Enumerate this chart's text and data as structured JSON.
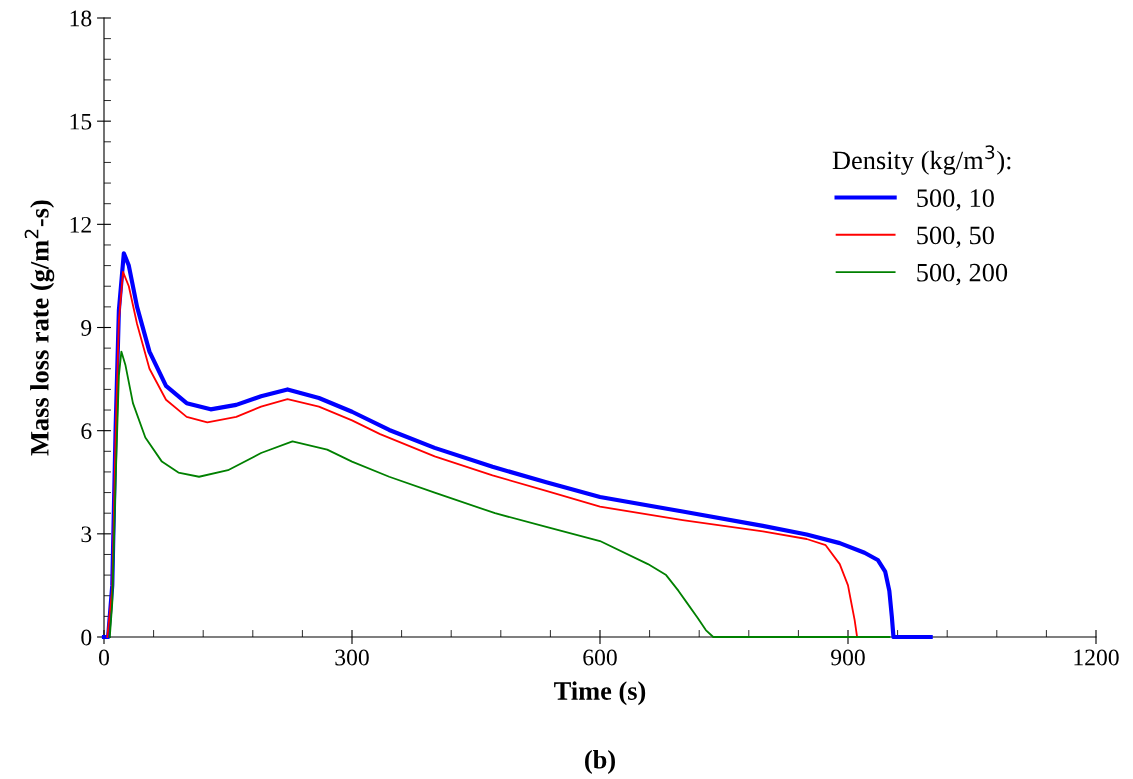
{
  "chart_data": {
    "type": "line",
    "xlabel": "Time (s)",
    "ylabel": "Mass loss rate (g/m$^{2}$-s)",
    "legend_title": "Density (kg/m$^{3}$):",
    "annotations": [
      "(b)"
    ],
    "xlim": [
      0,
      1200
    ],
    "ylim": [
      0,
      18
    ],
    "xticks": [
      0,
      {
        "value": 60,
        "label": null
      },
      {
        "value": 120,
        "label": null
      },
      {
        "value": 180,
        "label": null
      },
      {
        "value": 240,
        "label": null
      },
      300,
      {
        "value": 360,
        "label": null
      },
      {
        "value": 420,
        "label": null
      },
      {
        "value": 480,
        "label": null
      },
      {
        "value": 540,
        "label": null
      },
      600,
      {
        "value": 660,
        "label": null
      },
      {
        "value": 720,
        "label": null
      },
      {
        "value": 780,
        "label": null
      },
      {
        "value": 840,
        "label": null
      },
      900,
      {
        "value": 960,
        "label": null
      },
      {
        "value": 1020,
        "label": null
      },
      {
        "value": 1080,
        "label": null
      },
      {
        "value": 1140,
        "label": null
      },
      1200
    ],
    "yticks": [
      0,
      {
        "value": 0.6,
        "label": null
      },
      {
        "value": 1.2,
        "label": null
      },
      {
        "value": 1.8,
        "label": null
      },
      {
        "value": 2.4,
        "label": null
      },
      3,
      {
        "value": 3.6,
        "label": null
      },
      {
        "value": 4.2,
        "label": null
      },
      {
        "value": 4.8,
        "label": null
      },
      {
        "value": 5.4,
        "label": null
      },
      6,
      {
        "value": 6.6,
        "label": null
      },
      {
        "value": 7.2,
        "label": null
      },
      {
        "value": 7.8,
        "label": null
      },
      {
        "value": 8.4,
        "label": null
      },
      9,
      {
        "value": 9.6,
        "label": null
      },
      {
        "value": 10.2,
        "label": null
      },
      {
        "value": 10.8,
        "label": null
      },
      {
        "value": 11.4,
        "label": null
      },
      12,
      {
        "value": 12.6,
        "label": null
      },
      {
        "value": 13.2,
        "label": null
      },
      {
        "value": 13.8,
        "label": null
      },
      {
        "value": 14.4,
        "label": null
      },
      15,
      {
        "value": 15.6,
        "label": null
      },
      {
        "value": 16.2,
        "label": null
      },
      {
        "value": 16.8,
        "label": null
      },
      {
        "value": 17.4,
        "label": null
      },
      18
    ],
    "legend": "right",
    "grid": false,
    "marker": "none",
    "line_style": "solid",
    "series": [
      {
        "name": "500, 10",
        "color": "#0000ff",
        "x": [
          0,
          5,
          10,
          14,
          18,
          24,
          30,
          40,
          55,
          75,
          100,
          129,
          160,
          190,
          222,
          260,
          300,
          345,
          400,
          470,
          535,
          600,
          700,
          797,
          850,
          890,
          920,
          936,
          945,
          950,
          953,
          955,
          1000
        ],
        "values": [
          0,
          0,
          1.5,
          6,
          9.5,
          11.16,
          10.8,
          9.6,
          8.3,
          7.3,
          6.8,
          6.62,
          6.75,
          7.0,
          7.2,
          6.95,
          6.55,
          6.02,
          5.5,
          4.95,
          4.5,
          4.07,
          3.65,
          3.23,
          2.98,
          2.73,
          2.45,
          2.24,
          1.9,
          1.34,
          0.6,
          0,
          0
        ]
      },
      {
        "name": "500, 50",
        "color": "#ff0000",
        "x": [
          4,
          10,
          14,
          18,
          23,
          30,
          40,
          55,
          75,
          100,
          125,
          160,
          190,
          222,
          260,
          300,
          334,
          400,
          470,
          535,
          600,
          700,
          797,
          850,
          873,
          890,
          900,
          903,
          908,
          911
        ],
        "values": [
          0,
          1.4,
          5.8,
          9.2,
          10.62,
          10.2,
          9.1,
          7.8,
          6.9,
          6.4,
          6.24,
          6.4,
          6.7,
          6.92,
          6.7,
          6.3,
          5.9,
          5.25,
          4.7,
          4.25,
          3.79,
          3.4,
          3.07,
          2.85,
          2.67,
          2.12,
          1.5,
          1.12,
          0.5,
          0
        ]
      },
      {
        "name": "500, 200",
        "color": "#008000",
        "x": [
          7,
          10,
          14,
          18,
          21,
          26,
          35,
          50,
          70,
          90,
          115,
          150,
          190,
          228,
          270,
          300,
          345,
          400,
          473,
          535,
          600,
          658,
          680,
          695,
          705,
          718,
          728,
          737,
          950
        ],
        "values": [
          0,
          1.0,
          4.5,
          7.6,
          8.3,
          7.9,
          6.8,
          5.8,
          5.1,
          4.78,
          4.66,
          4.85,
          5.35,
          5.69,
          5.45,
          5.1,
          4.66,
          4.2,
          3.6,
          3.2,
          2.79,
          2.12,
          1.8,
          1.34,
          1.0,
          0.56,
          0.2,
          0,
          0
        ]
      }
    ]
  }
}
